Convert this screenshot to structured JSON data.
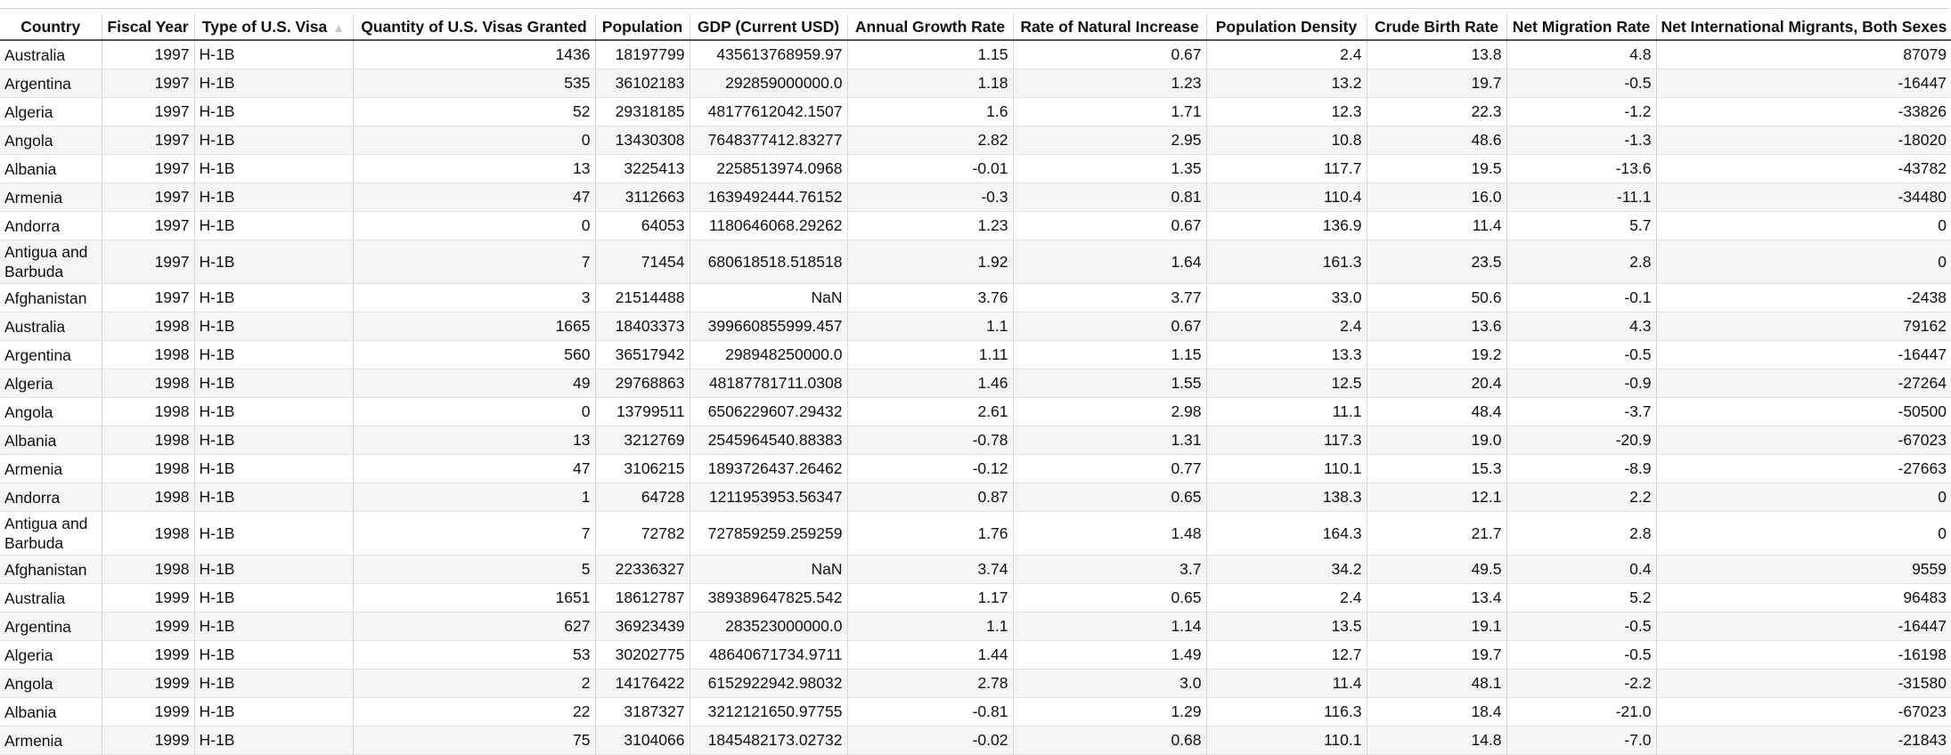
{
  "table": {
    "sorted_column": 2,
    "sort_icon": "sort-ascending-icon",
    "columns": [
      {
        "label": "Country",
        "align": "left",
        "width": 114
      },
      {
        "label": "Fiscal Year",
        "align": "right",
        "width": 104
      },
      {
        "label": "Type of U.S. Visa",
        "align": "left",
        "width": 178
      },
      {
        "label": "Quantity of U.S. Visas Granted",
        "align": "right",
        "width": 272
      },
      {
        "label": "Population",
        "align": "right",
        "width": 106
      },
      {
        "label": "GDP (Current USD)",
        "align": "right",
        "width": 177
      },
      {
        "label": "Annual Growth Rate",
        "align": "right",
        "width": 186
      },
      {
        "label": "Rate of Natural Increase",
        "align": "right",
        "width": 217
      },
      {
        "label": "Population Density",
        "align": "right",
        "width": 180
      },
      {
        "label": "Crude Birth Rate",
        "align": "right",
        "width": 157
      },
      {
        "label": "Net Migration Rate",
        "align": "right",
        "width": 168
      },
      {
        "label": "Net International Migrants, Both Sexes",
        "align": "right",
        "width": 331
      }
    ],
    "rows": [
      [
        "Australia",
        "1997",
        "H-1B",
        "1436",
        "18197799",
        "435613768959.97",
        "1.15",
        "0.67",
        "2.4",
        "13.8",
        "4.8",
        "87079"
      ],
      [
        "Argentina",
        "1997",
        "H-1B",
        "535",
        "36102183",
        "292859000000.0",
        "1.18",
        "1.23",
        "13.2",
        "19.7",
        "-0.5",
        "-16447"
      ],
      [
        "Algeria",
        "1997",
        "H-1B",
        "52",
        "29318185",
        "48177612042.1507",
        "1.6",
        "1.71",
        "12.3",
        "22.3",
        "-1.2",
        "-33826"
      ],
      [
        "Angola",
        "1997",
        "H-1B",
        "0",
        "13430308",
        "7648377412.83277",
        "2.82",
        "2.95",
        "10.8",
        "48.6",
        "-1.3",
        "-18020"
      ],
      [
        "Albania",
        "1997",
        "H-1B",
        "13",
        "3225413",
        "2258513974.0968",
        "-0.01",
        "1.35",
        "117.7",
        "19.5",
        "-13.6",
        "-43782"
      ],
      [
        "Armenia",
        "1997",
        "H-1B",
        "47",
        "3112663",
        "1639492444.76152",
        "-0.3",
        "0.81",
        "110.4",
        "16.0",
        "-11.1",
        "-34480"
      ],
      [
        "Andorra",
        "1997",
        "H-1B",
        "0",
        "64053",
        "1180646068.29262",
        "1.23",
        "0.67",
        "136.9",
        "11.4",
        "5.7",
        "0"
      ],
      [
        "Antigua and Barbuda",
        "1997",
        "H-1B",
        "7",
        "71454",
        "680618518.518518",
        "1.92",
        "1.64",
        "161.3",
        "23.5",
        "2.8",
        "0"
      ],
      [
        "Afghanistan",
        "1997",
        "H-1B",
        "3",
        "21514488",
        "NaN",
        "3.76",
        "3.77",
        "33.0",
        "50.6",
        "-0.1",
        "-2438"
      ],
      [
        "Australia",
        "1998",
        "H-1B",
        "1665",
        "18403373",
        "399660855999.457",
        "1.1",
        "0.67",
        "2.4",
        "13.6",
        "4.3",
        "79162"
      ],
      [
        "Argentina",
        "1998",
        "H-1B",
        "560",
        "36517942",
        "298948250000.0",
        "1.11",
        "1.15",
        "13.3",
        "19.2",
        "-0.5",
        "-16447"
      ],
      [
        "Algeria",
        "1998",
        "H-1B",
        "49",
        "29768863",
        "48187781711.0308",
        "1.46",
        "1.55",
        "12.5",
        "20.4",
        "-0.9",
        "-27264"
      ],
      [
        "Angola",
        "1998",
        "H-1B",
        "0",
        "13799511",
        "6506229607.29432",
        "2.61",
        "2.98",
        "11.1",
        "48.4",
        "-3.7",
        "-50500"
      ],
      [
        "Albania",
        "1998",
        "H-1B",
        "13",
        "3212769",
        "2545964540.88383",
        "-0.78",
        "1.31",
        "117.3",
        "19.0",
        "-20.9",
        "-67023"
      ],
      [
        "Armenia",
        "1998",
        "H-1B",
        "47",
        "3106215",
        "1893726437.26462",
        "-0.12",
        "0.77",
        "110.1",
        "15.3",
        "-8.9",
        "-27663"
      ],
      [
        "Andorra",
        "1998",
        "H-1B",
        "1",
        "64728",
        "1211953953.56347",
        "0.87",
        "0.65",
        "138.3",
        "12.1",
        "2.2",
        "0"
      ],
      [
        "Antigua and Barbuda",
        "1998",
        "H-1B",
        "7",
        "72782",
        "727859259.259259",
        "1.76",
        "1.48",
        "164.3",
        "21.7",
        "2.8",
        "0"
      ],
      [
        "Afghanistan",
        "1998",
        "H-1B",
        "5",
        "22336327",
        "NaN",
        "3.74",
        "3.7",
        "34.2",
        "49.5",
        "0.4",
        "9559"
      ],
      [
        "Australia",
        "1999",
        "H-1B",
        "1651",
        "18612787",
        "389389647825.542",
        "1.17",
        "0.65",
        "2.4",
        "13.4",
        "5.2",
        "96483"
      ],
      [
        "Argentina",
        "1999",
        "H-1B",
        "627",
        "36923439",
        "283523000000.0",
        "1.1",
        "1.14",
        "13.5",
        "19.1",
        "-0.5",
        "-16447"
      ],
      [
        "Algeria",
        "1999",
        "H-1B",
        "53",
        "30202775",
        "48640671734.9711",
        "1.44",
        "1.49",
        "12.7",
        "19.7",
        "-0.5",
        "-16198"
      ],
      [
        "Angola",
        "1999",
        "H-1B",
        "2",
        "14176422",
        "6152922942.98032",
        "2.78",
        "3.0",
        "11.4",
        "48.1",
        "-2.2",
        "-31580"
      ],
      [
        "Albania",
        "1999",
        "H-1B",
        "22",
        "3187327",
        "3212121650.97755",
        "-0.81",
        "1.29",
        "116.3",
        "18.4",
        "-21.0",
        "-67023"
      ],
      [
        "Armenia",
        "1999",
        "H-1B",
        "75",
        "3104066",
        "1845482173.02732",
        "-0.02",
        "0.68",
        "110.1",
        "14.8",
        "-7.0",
        "-21843"
      ]
    ]
  }
}
